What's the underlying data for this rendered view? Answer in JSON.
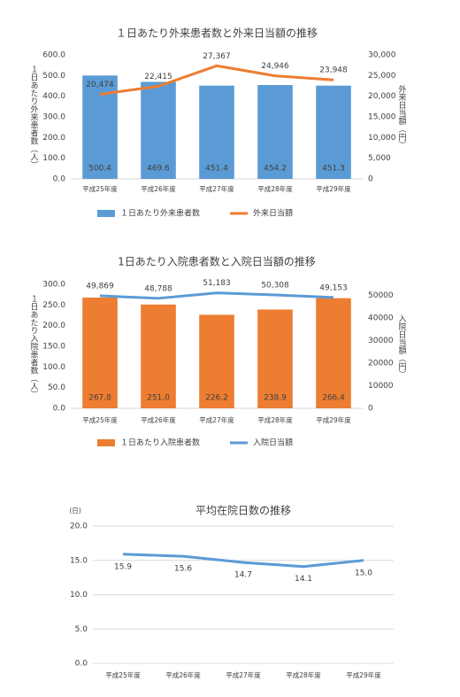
{
  "chart_data": [
    {
      "type": "bar",
      "title": "１日あたり外来患者数と外来日当額の推移",
      "categories": [
        "平成25年度",
        "平成26年度",
        "平成27年度",
        "平成28年度",
        "平成29年度"
      ],
      "series": [
        {
          "name": "１日あたり外来患者数",
          "type": "bar",
          "color": "#5b9bd5",
          "values": [
            500.4,
            469.6,
            451.4,
            454.2,
            451.3
          ]
        },
        {
          "name": "外来日当額",
          "type": "line",
          "axis": "y2",
          "color": "#ed7d31",
          "values": [
            20474,
            22415,
            27367,
            24946,
            23948
          ],
          "value_labels": [
            "20,474",
            "22,415",
            "27,367",
            "24,946",
            "23,948"
          ]
        }
      ],
      "ylabel": "１日あたり外来患者数（人）",
      "y2label": "外来日当額（円）",
      "ylim": [
        0,
        600
      ],
      "yticks": [
        {
          "value": 0,
          "label": "0.0"
        },
        {
          "value": 100,
          "label": "100.0"
        },
        {
          "value": 200,
          "label": "200.0"
        },
        {
          "value": 300,
          "label": "300.0"
        },
        {
          "value": 400,
          "label": "400.0"
        },
        {
          "value": 500,
          "label": "500.0"
        },
        {
          "value": 600,
          "label": "600.0"
        }
      ],
      "y2lim": [
        0,
        30000
      ],
      "y2ticks": [
        0,
        {
          "value": 5000,
          "label": "5,000"
        },
        {
          "value": 10000,
          "label": "10,000"
        },
        {
          "value": 15000,
          "label": "15,000"
        },
        {
          "value": 20000,
          "label": "20,000"
        },
        {
          "value": 25000,
          "label": "25,000"
        },
        {
          "value": 30000,
          "label": "30,000"
        }
      ],
      "grid": false,
      "legend": "bottom"
    },
    {
      "type": "bar",
      "title": "1日あたり入院患者数と入院日当額の推移",
      "categories": [
        "平成25年度",
        "平成26年度",
        "平成27年度",
        "平成28年度",
        "平成29年度"
      ],
      "series": [
        {
          "name": "１日あたり入院患者数",
          "type": "bar",
          "color": "#ed7d31",
          "values": [
            267.8,
            251.0,
            226.2,
            238.9,
            266.4
          ],
          "value_labels": [
            "267.8",
            "251.0",
            "226.2",
            "238.9",
            "266.4"
          ]
        },
        {
          "name": "入院日当額",
          "type": "line",
          "axis": "y2",
          "color": "#5b9bd5",
          "values": [
            49869,
            48788,
            51183,
            50308,
            49153
          ],
          "value_labels": [
            "49,869",
            "48,788",
            "51,183",
            "50,308",
            "49,153"
          ]
        }
      ],
      "ylabel": "１日あたり入院患者数（人）",
      "y2label": "入院日当額（円）",
      "ylim": [
        0,
        300
      ],
      "yticks": [
        {
          "value": 0,
          "label": "0.0"
        },
        {
          "value": 50,
          "label": "50.0"
        },
        {
          "value": 100,
          "label": "100.0"
        },
        {
          "value": 150,
          "label": "150.0"
        },
        {
          "value": 200,
          "label": "200.0"
        },
        {
          "value": 250,
          "label": "250.0"
        },
        {
          "value": 300,
          "label": "300.0"
        }
      ],
      "y2lim": [
        0,
        55000
      ],
      "y2ticks": [
        0,
        10000,
        20000,
        30000,
        40000,
        50000
      ],
      "grid": false,
      "legend": "bottom"
    },
    {
      "type": "line",
      "title": "平均在院日数の推移",
      "y_unit": "(日)",
      "categories": [
        "平成25年度",
        "平成26年度",
        "平成27年度",
        "平成28年度",
        "平成29年度"
      ],
      "series": [
        {
          "name": "平均在院日数",
          "type": "line",
          "color": "#5b9bd5",
          "values": [
            15.9,
            15.6,
            14.7,
            14.1,
            15.0
          ],
          "value_labels": [
            "15.9",
            "15.6",
            "14.7",
            "14.1",
            "15.0"
          ]
        }
      ],
      "ylim": [
        0,
        20
      ],
      "yticks": [
        {
          "value": 0,
          "label": "0.0"
        },
        {
          "value": 5,
          "label": "5.0"
        },
        {
          "value": 10,
          "label": "10.0"
        },
        {
          "value": 15,
          "label": "15.0"
        },
        {
          "value": 20,
          "label": "20.0"
        }
      ],
      "grid": true,
      "legend": "none"
    }
  ]
}
